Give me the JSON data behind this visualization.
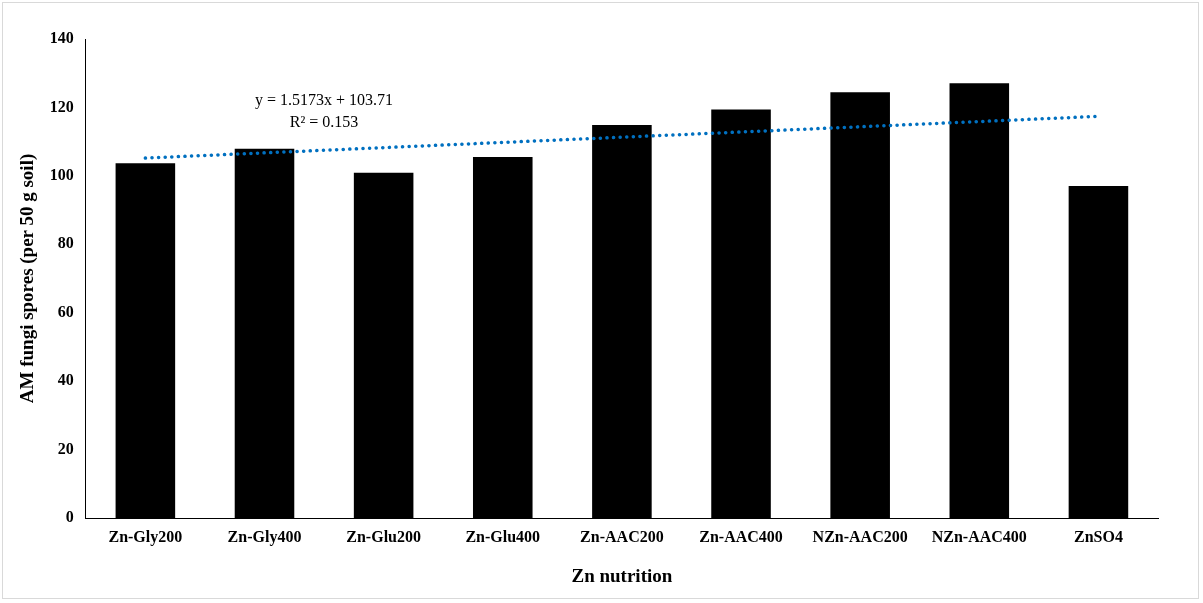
{
  "chart_data": {
    "type": "bar",
    "xlabel": "Zn nutrition",
    "ylabel": "AM fungi spores (per 50 g soil)",
    "categories": [
      "Zn-Gly200",
      "Zn-Gly400",
      "Zn-Glu200",
      "Zn-Glu400",
      "Zn-AAC200",
      "Zn-AAC400",
      "NZn-AAC200",
      "NZn-AAC400",
      "ZnSO4"
    ],
    "series": [
      {
        "color": "#000000",
        "values": [
          103.7,
          107.9,
          100.9,
          105.5,
          114.9,
          119.4,
          124.4,
          127.1,
          97.0
        ]
      },
      {
        "type": "line",
        "color": "#0070c0",
        "x": [
          "Zn-Gly200",
          "ZnSO4"
        ],
        "values": [
          105.2,
          117.4
        ],
        "line_style": "dotted",
        "marker": "none"
      }
    ],
    "annotations": [
      "y = 1.5173x + 103.71",
      "R² = 0.153"
    ],
    "ylim": [
      0,
      140
    ],
    "yticks": [
      0,
      20,
      40,
      60,
      80,
      100,
      120,
      140
    ],
    "grid": false,
    "legend": false
  }
}
